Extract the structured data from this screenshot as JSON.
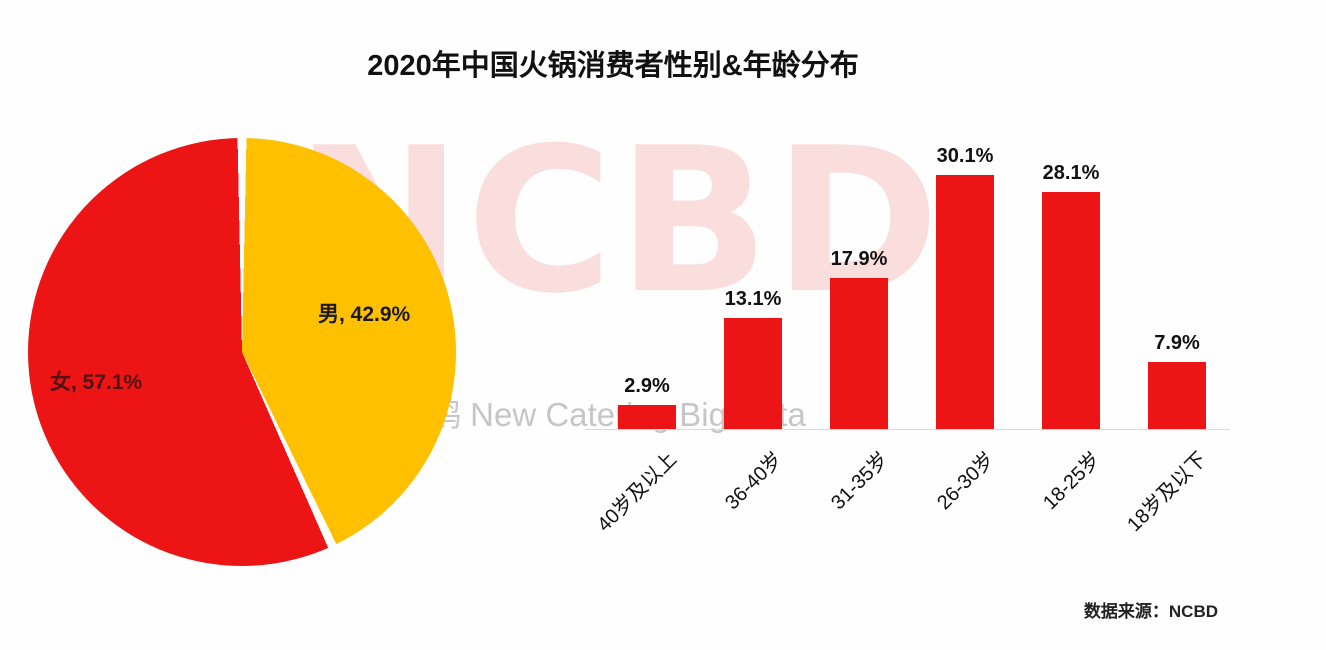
{
  "title": "2020年中国火锅消费者性别&年龄分布",
  "source": "数据来源：NCBD",
  "watermark": {
    "big": "NCBD",
    "small": "鸥 New Catering Big Data"
  },
  "colors": {
    "red": "#ec1414",
    "yellow": "#ffc000",
    "axis_gray": "#d9d9d9"
  },
  "pie_labels": {
    "male": "男, 42.9%",
    "female": "女, 57.1%"
  },
  "chart_data": [
    {
      "type": "pie",
      "name": "gender-distribution",
      "slices": [
        {
          "label": "女",
          "value": 57.1,
          "color": "#ec1414"
        },
        {
          "label": "男",
          "value": 42.9,
          "color": "#ffc000"
        }
      ],
      "start_angle_deg": 0,
      "direction": "clockwise",
      "first_slice_from_top": "男",
      "legend": "none"
    },
    {
      "type": "bar",
      "name": "age-distribution",
      "categories": [
        "40岁及以上",
        "36-40岁",
        "31-35岁",
        "26-30岁",
        "18-25岁",
        "18岁及以下"
      ],
      "values": [
        2.9,
        13.1,
        17.9,
        30.1,
        28.1,
        7.9
      ],
      "value_labels": [
        "2.9%",
        "13.1%",
        "17.9%",
        "30.1%",
        "28.1%",
        "7.9%"
      ],
      "bar_color": "#ec1414",
      "xlabel": "",
      "ylabel": "",
      "ylim": [
        0,
        32
      ],
      "grid": false,
      "legend": "none"
    }
  ]
}
